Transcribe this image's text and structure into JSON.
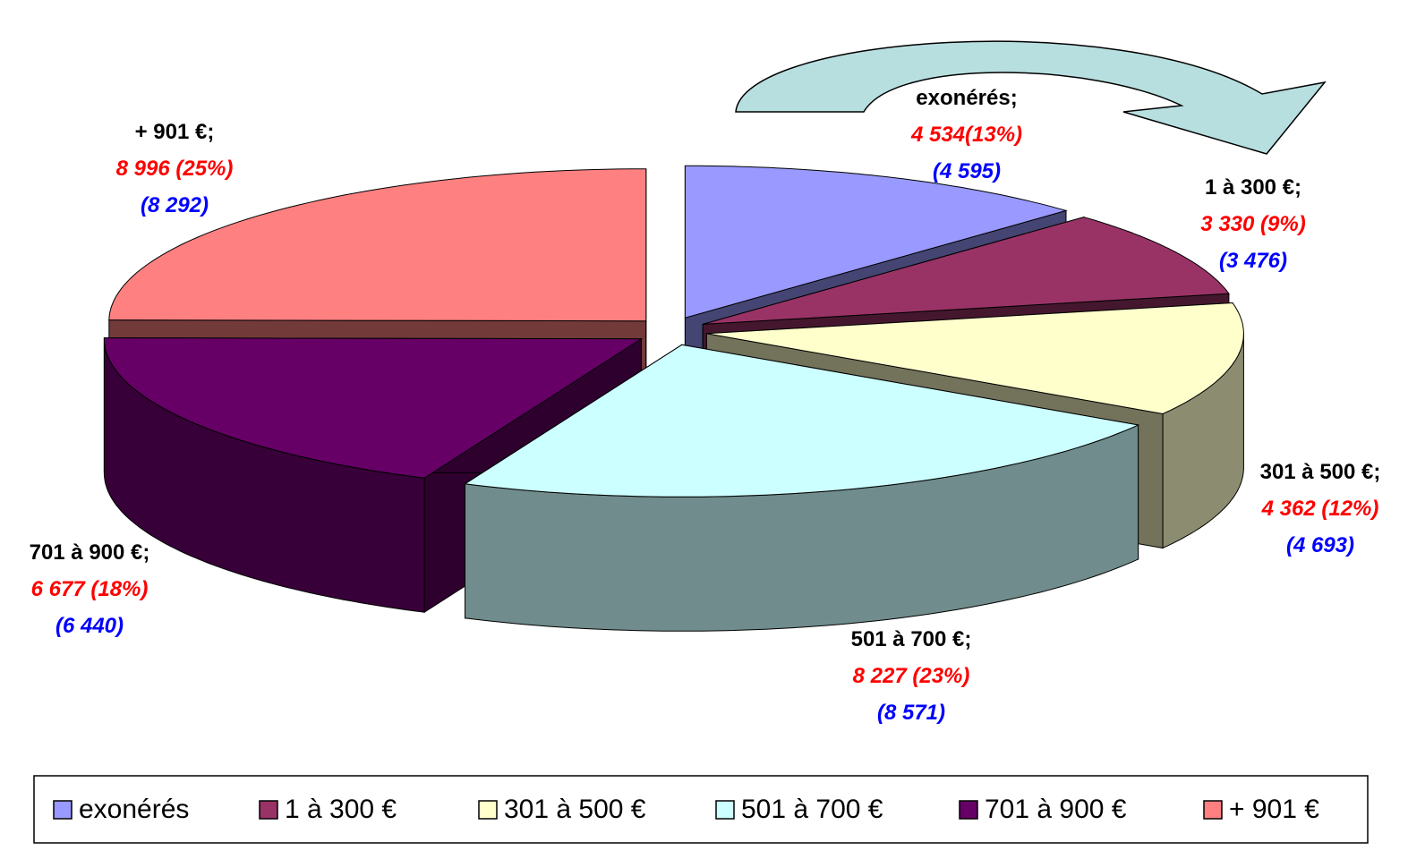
{
  "chart_data": {
    "type": "pie3d",
    "categories": [
      "exonérés",
      "1 à 300 €",
      "301 à 500 €",
      "501 à 700 €",
      "701 à 900 €",
      "+ 901 €"
    ],
    "label_separator": ";",
    "values": [
      4534,
      3330,
      4362,
      8227,
      6677,
      8996
    ],
    "value_labels": [
      "4 534(13%)",
      "3 330 (9%)",
      "4 362 (12%)",
      "8 227 (23%)",
      "6 677 (18%)",
      "8 996 (25%)"
    ],
    "previous_values": [
      4595,
      3476,
      4693,
      8571,
      6440,
      8292
    ],
    "previous_value_labels": [
      "(4 595)",
      "(3 476)",
      "(4 693)",
      "(8 571)",
      "(6 440)",
      "(8 292)"
    ],
    "colors": [
      "#9999ff",
      "#993366",
      "#ffffcc",
      "#ccffff",
      "#660066",
      "#ff8080"
    ],
    "legend": "bottom"
  }
}
